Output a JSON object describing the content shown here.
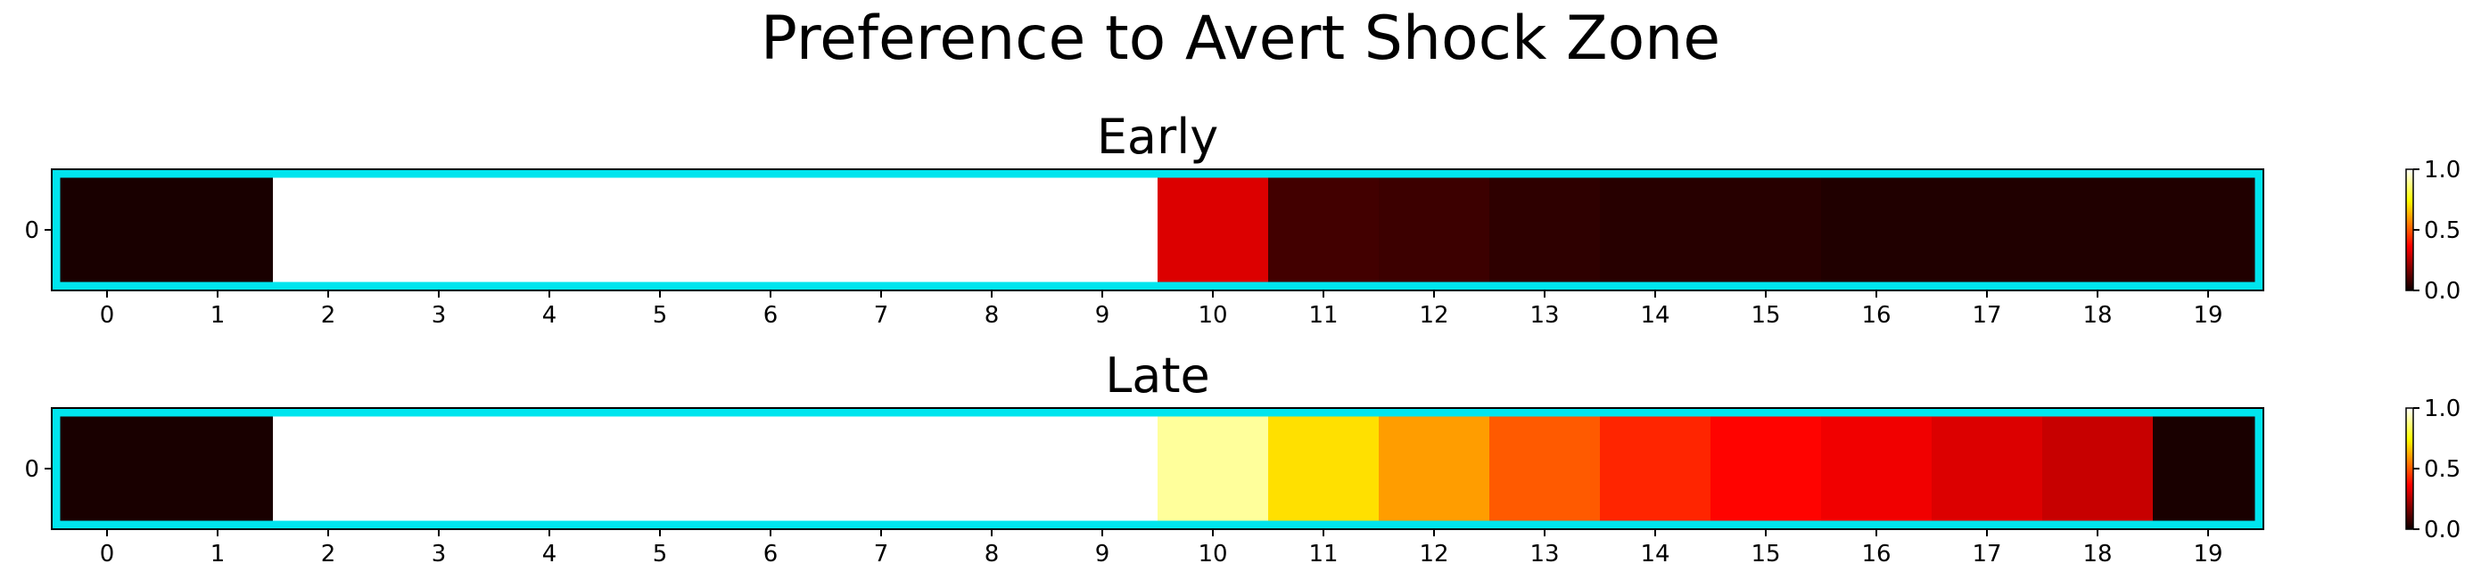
{
  "figure": {
    "title": "Preference to Avert Shock Zone"
  },
  "colors": {
    "highlight_border": "#00e5ee",
    "nan_cell": "#ffffff",
    "axis": "#000000"
  },
  "colormap": "hot",
  "chart_data": [
    {
      "type": "heatmap",
      "title": "Early",
      "x_ticks": [
        "0",
        "1",
        "2",
        "3",
        "4",
        "5",
        "6",
        "7",
        "8",
        "9",
        "10",
        "11",
        "12",
        "13",
        "14",
        "15",
        "16",
        "17",
        "18",
        "19"
      ],
      "y_ticks": [
        "0"
      ],
      "values": [
        0.02,
        0.02,
        null,
        null,
        null,
        null,
        null,
        null,
        null,
        null,
        0.3,
        0.08,
        0.07,
        0.05,
        0.04,
        0.04,
        0.03,
        0.03,
        0.03,
        0.03
      ],
      "colorbar": {
        "min": 0.0,
        "max": 1.0,
        "ticks": [
          "0.0",
          "0.5",
          "1.0"
        ]
      }
    },
    {
      "type": "heatmap",
      "title": "Late",
      "x_ticks": [
        "0",
        "1",
        "2",
        "3",
        "4",
        "5",
        "6",
        "7",
        "8",
        "9",
        "10",
        "11",
        "12",
        "13",
        "14",
        "15",
        "16",
        "17",
        "18",
        "19"
      ],
      "y_ticks": [
        "0"
      ],
      "values": [
        0.02,
        0.02,
        null,
        null,
        null,
        null,
        null,
        null,
        null,
        null,
        0.9,
        0.7,
        0.6,
        0.5,
        0.42,
        0.37,
        0.33,
        0.3,
        0.27,
        0.02
      ],
      "colorbar": {
        "min": 0.0,
        "max": 1.0,
        "ticks": [
          "0.0",
          "0.5",
          "1.0"
        ]
      }
    }
  ]
}
